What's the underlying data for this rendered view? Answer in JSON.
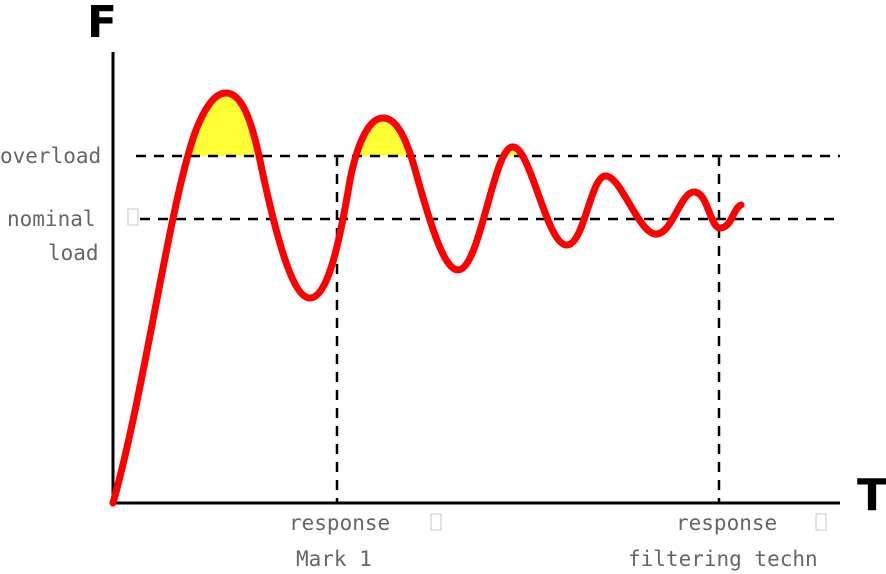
{
  "axes": {
    "y_label": "F",
    "x_label": "T"
  },
  "levels": {
    "overload": "overload",
    "nominal_line1": "nominal",
    "nominal_line2": "load"
  },
  "markers": {
    "left_line1": "response",
    "left_line2": "Mark 1",
    "right_line1": "response",
    "right_line2": "filtering techn"
  },
  "colors": {
    "curve": "#ff0000",
    "overshoot_fill": "#ffff33",
    "axis": "#000000",
    "label_text": "#666666"
  }
}
